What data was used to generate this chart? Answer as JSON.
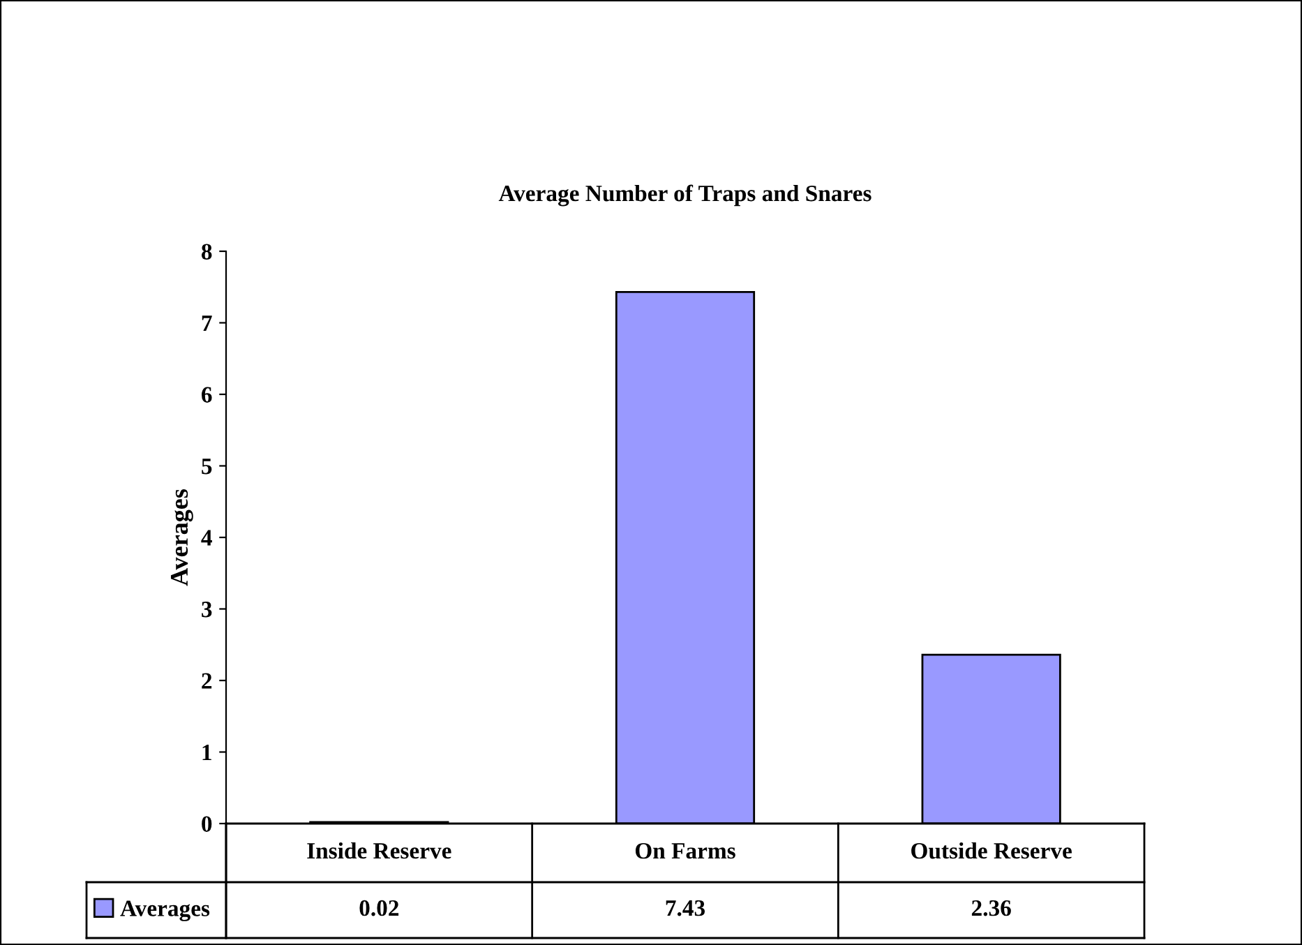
{
  "chart_data": {
    "type": "bar",
    "title": "Average Number of Traps and Snares",
    "ylabel": "Averages",
    "categories": [
      "Inside Reserve",
      "On Farms",
      "Outside Reserve"
    ],
    "series": [
      {
        "name": "Averages",
        "color": "#9999ff",
        "values": [
          0.02,
          7.43,
          2.36
        ]
      }
    ],
    "ylim": [
      0,
      8
    ],
    "yticks": [
      0,
      1,
      2,
      3,
      4,
      5,
      6,
      7,
      8
    ],
    "grid": false,
    "legend": "bottom left",
    "data_labels": true
  }
}
